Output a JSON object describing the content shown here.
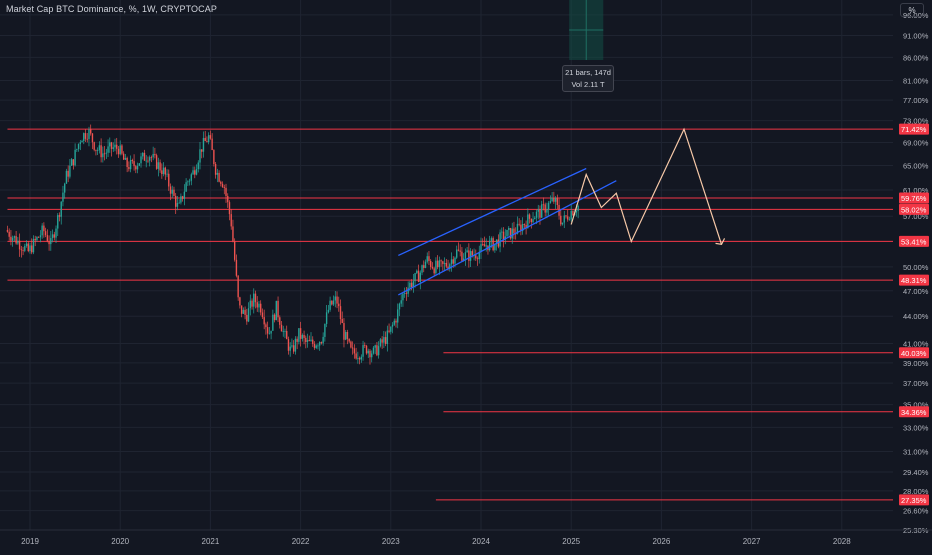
{
  "header": {
    "title": "Market Cap BTC Dominance, %, 1W, CRYPTOCAP"
  },
  "scale_button": {
    "label": "%"
  },
  "tooltip": {
    "bars": "21 bars, 147d",
    "volume": "Vol 2.11 T"
  },
  "colors": {
    "background": "#131722",
    "up": "#26a69a",
    "down": "#ef5350",
    "level_line": "#f23645",
    "channel": "#2962ff",
    "projection": "#f7c9a8",
    "axis_text": "#b2b5be"
  },
  "chart_data": {
    "type": "candlestick",
    "title": "Market Cap BTC Dominance",
    "xlabel": "",
    "ylabel": "%",
    "y_scale": "log",
    "ylim": [
      25.3,
      99
    ],
    "xlim": [
      "2018-10",
      "2028-06"
    ],
    "x_ticks": [
      "2019",
      "2020",
      "2021",
      "2022",
      "2023",
      "2024",
      "2025",
      "2026",
      "2027",
      "2028"
    ],
    "y_ticks": [
      "96.00%",
      "91.00%",
      "86.00%",
      "81.00%",
      "77.00%",
      "73.00%",
      "69.00%",
      "65.00%",
      "61.00%",
      "57.00%",
      "53.41%",
      "50.00%",
      "47.00%",
      "44.00%",
      "41.00%",
      "39.00%",
      "37.00%",
      "35.00%",
      "33.00%",
      "31.00%",
      "29.40%",
      "28.00%",
      "26.60%",
      "25.30%"
    ],
    "price_path": [
      [
        "2018-10",
        55
      ],
      [
        "2019-01",
        52
      ],
      [
        "2019-03",
        55
      ],
      [
        "2019-04",
        53
      ],
      [
        "2019-05",
        57
      ],
      [
        "2019-06",
        63
      ],
      [
        "2019-07",
        66
      ],
      [
        "2019-08",
        70
      ],
      [
        "2019-09",
        71
      ],
      [
        "2019-10",
        68
      ],
      [
        "2019-11",
        67
      ],
      [
        "2019-12",
        68
      ],
      [
        "2020-01",
        68
      ],
      [
        "2020-02",
        65
      ],
      [
        "2020-03",
        65
      ],
      [
        "2020-05",
        67
      ],
      [
        "2020-07",
        64
      ],
      [
        "2020-08",
        61
      ],
      [
        "2020-09",
        58
      ],
      [
        "2020-10",
        62
      ],
      [
        "2020-11",
        64
      ],
      [
        "2020-12",
        68
      ],
      [
        "2021-01",
        70
      ],
      [
        "2021-02",
        64
      ],
      [
        "2021-03",
        62
      ],
      [
        "2021-04",
        56
      ],
      [
        "2021-05",
        45
      ],
      [
        "2021-06",
        44
      ],
      [
        "2021-07",
        46
      ],
      [
        "2021-08",
        45
      ],
      [
        "2021-09",
        42
      ],
      [
        "2021-10",
        45
      ],
      [
        "2021-11",
        42
      ],
      [
        "2021-12",
        40
      ],
      [
        "2022-01",
        42
      ],
      [
        "2022-02",
        41
      ],
      [
        "2022-03",
        41
      ],
      [
        "2022-04",
        41.5
      ],
      [
        "2022-05",
        45
      ],
      [
        "2022-06",
        46
      ],
      [
        "2022-07",
        42
      ],
      [
        "2022-08",
        40
      ],
      [
        "2022-09",
        40
      ],
      [
        "2022-10",
        40.5
      ],
      [
        "2022-11",
        40
      ],
      [
        "2022-12",
        41
      ],
      [
        "2023-01",
        42
      ],
      [
        "2023-02",
        44
      ],
      [
        "2023-03",
        47
      ],
      [
        "2023-04",
        48
      ],
      [
        "2023-05",
        49
      ],
      [
        "2023-06",
        51
      ],
      [
        "2023-07",
        50
      ],
      [
        "2023-08",
        50
      ],
      [
        "2023-09",
        50.5
      ],
      [
        "2023-10",
        52
      ],
      [
        "2023-11",
        51.5
      ],
      [
        "2023-12",
        51.5
      ],
      [
        "2024-01",
        52
      ],
      [
        "2024-02",
        53
      ],
      [
        "2024-03",
        53
      ],
      [
        "2024-04",
        54
      ],
      [
        "2024-05",
        54.5
      ],
      [
        "2024-06",
        55
      ],
      [
        "2024-07",
        56
      ],
      [
        "2024-08",
        57
      ],
      [
        "2024-09",
        57.5
      ],
      [
        "2024-10",
        58.5
      ],
      [
        "2024-11",
        59.5
      ],
      [
        "2024-12",
        56
      ],
      [
        "2025-01",
        57.5
      ],
      [
        "2025-02",
        58.5
      ]
    ],
    "horizontal_levels": [
      71.42,
      59.76,
      58.02,
      53.41,
      48.31,
      40.03,
      34.36,
      27.35
    ],
    "level_labels": [
      "71.42%",
      "59.76%",
      "58.02%",
      "53.41%",
      "48.31%",
      "40.03%",
      "34.36%",
      "27.35%"
    ],
    "level_starts": [
      "2018-10",
      "2018-10",
      "2018-10",
      "2018-10",
      "2018-10",
      "2023-08",
      "2023-08",
      "2023-07"
    ],
    "channel": {
      "upper": [
        [
          "2023-02",
          51.5
        ],
        [
          "2025-03",
          64.5
        ]
      ],
      "lower": [
        [
          "2023-02",
          46.5
        ],
        [
          "2025-07",
          62.5
        ]
      ]
    },
    "projection_path": [
      [
        "2025-01",
        55.8
      ],
      [
        "2025-03",
        63.5
      ],
      [
        "2025-05",
        58.3
      ],
      [
        "2025-07",
        60.5
      ],
      [
        "2025-09",
        53.4
      ],
      [
        "2026-04",
        71.4
      ],
      [
        "2026-09",
        53.0
      ]
    ],
    "highlight_range": [
      "2025-01",
      "2025-05"
    ]
  }
}
